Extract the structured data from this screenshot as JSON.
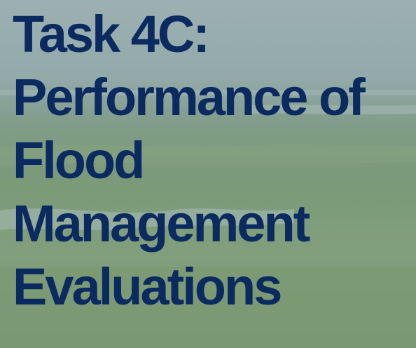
{
  "title_lines": [
    "Task 4C:",
    "Performance of",
    "Flood",
    "Management",
    "Evaluations"
  ]
}
